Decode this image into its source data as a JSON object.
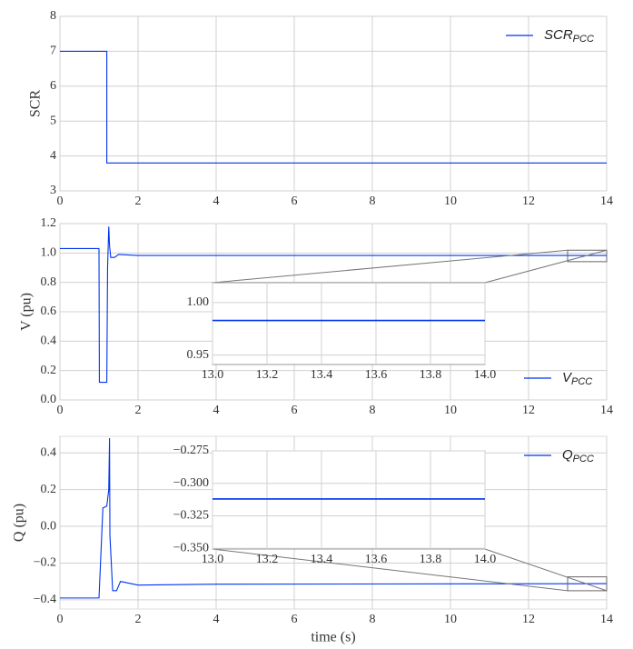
{
  "chart_data": [
    {
      "type": "line",
      "ylabel": "SCR",
      "xlim": [
        0,
        14
      ],
      "ylim": [
        3,
        8
      ],
      "xticks": [
        0,
        2,
        4,
        6,
        8,
        10,
        12,
        14
      ],
      "yticks": [
        3,
        4,
        5,
        6,
        7,
        8
      ],
      "grid": true,
      "legend": "upper right",
      "series": [
        {
          "name": "SCR",
          "name_sub": "PCC",
          "color": "#0033ee",
          "x": [
            0,
            1.2,
            1.2,
            14
          ],
          "values": [
            7,
            7,
            3.8,
            3.8
          ]
        }
      ]
    },
    {
      "type": "line",
      "ylabel": "V (pu)",
      "xlim": [
        0,
        14
      ],
      "ylim": [
        0,
        1.2
      ],
      "xticks": [
        0,
        2,
        4,
        6,
        8,
        10,
        12,
        14
      ],
      "yticks": [
        {
          "value": 0,
          "label": "0.0"
        },
        0.2,
        0.4,
        0.6,
        0.8,
        {
          "value": 1,
          "label": "1.0"
        },
        1.2
      ],
      "grid": true,
      "legend": "lower right",
      "series": [
        {
          "name": "V",
          "name_sub": "PCC",
          "color": "#0033ee",
          "x": [
            0,
            1.0,
            1.01,
            1.2,
            1.22,
            1.25,
            1.27,
            1.3,
            1.4,
            1.5,
            2.0,
            14
          ],
          "values": [
            1.03,
            1.03,
            0.12,
            0.12,
            0.9,
            1.18,
            1.05,
            0.97,
            0.97,
            0.99,
            0.983,
            0.983
          ]
        }
      ],
      "inset": {
        "xlim": [
          13,
          14
        ],
        "ylim": [
          0.941,
          1.019
        ],
        "xticks": [
          {
            "value": 13,
            "label": "13.0"
          },
          13.2,
          13.4,
          13.6,
          13.8,
          {
            "value": 14,
            "label": "14.0"
          }
        ],
        "yticks": [
          0.95,
          {
            "value": 1,
            "label": "1.00"
          }
        ],
        "grid": true,
        "series": [
          {
            "color": "#0033ee",
            "x": [
              13,
              14
            ],
            "values": [
              0.983,
              0.983
            ]
          }
        ]
      }
    },
    {
      "type": "line",
      "ylabel": "Q (pu)",
      "xlabel": "time (s)",
      "xlim": [
        0,
        14
      ],
      "ylim": [
        -0.45,
        0.49
      ],
      "xticks": [
        0,
        2,
        4,
        6,
        8,
        10,
        12,
        14
      ],
      "yticks": [
        {
          "value": -0.4,
          "label": "−0.4"
        },
        {
          "value": -0.2,
          "label": "−0.2"
        },
        {
          "value": 0,
          "label": "0.0"
        },
        0.2,
        0.4
      ],
      "grid": true,
      "legend": "upper right",
      "series": [
        {
          "name": "Q",
          "name_sub": "PCC",
          "color": "#0033ee",
          "x": [
            0,
            1.0,
            1.1,
            1.2,
            1.25,
            1.27,
            1.28,
            1.35,
            1.45,
            1.55,
            2.0,
            4.0,
            14
          ],
          "values": [
            -0.39,
            -0.39,
            0.1,
            0.11,
            0.2,
            0.48,
            -0.05,
            -0.35,
            -0.35,
            -0.3,
            -0.32,
            -0.315,
            -0.312
          ]
        }
      ],
      "inset": {
        "xlim": [
          13,
          14
        ],
        "ylim": [
          -0.3505,
          -0.275
        ],
        "xticks": [
          {
            "value": 13,
            "label": "13.0"
          },
          13.2,
          13.4,
          13.6,
          13.8,
          {
            "value": 14,
            "label": "14.0"
          }
        ],
        "yticks": [
          {
            "value": -0.275,
            "label": "−0.275"
          },
          {
            "value": -0.3,
            "label": "−0.300"
          },
          {
            "value": -0.325,
            "label": "−0.325"
          },
          {
            "value": -0.35,
            "label": "−0.350"
          }
        ],
        "grid": true,
        "series": [
          {
            "color": "#0033ee",
            "x": [
              13,
              14
            ],
            "values": [
              -0.312,
              -0.312
            ]
          }
        ]
      }
    }
  ]
}
